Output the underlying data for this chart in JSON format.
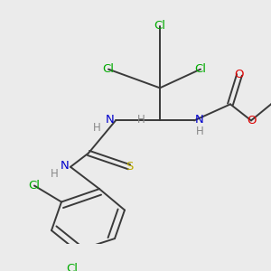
{
  "bg_color": "#ebebeb",
  "bond_color": "#3a3a3a",
  "bond_width": 1.4,
  "Cl_color": "#00aa00",
  "N_color": "#0000cc",
  "O_color": "#dd0000",
  "S_color": "#bbaa00",
  "H_color": "#888888",
  "font_size": 9.5,
  "xlim": [
    0.0,
    1.0
  ],
  "ylim": [
    0.0,
    1.0
  ]
}
